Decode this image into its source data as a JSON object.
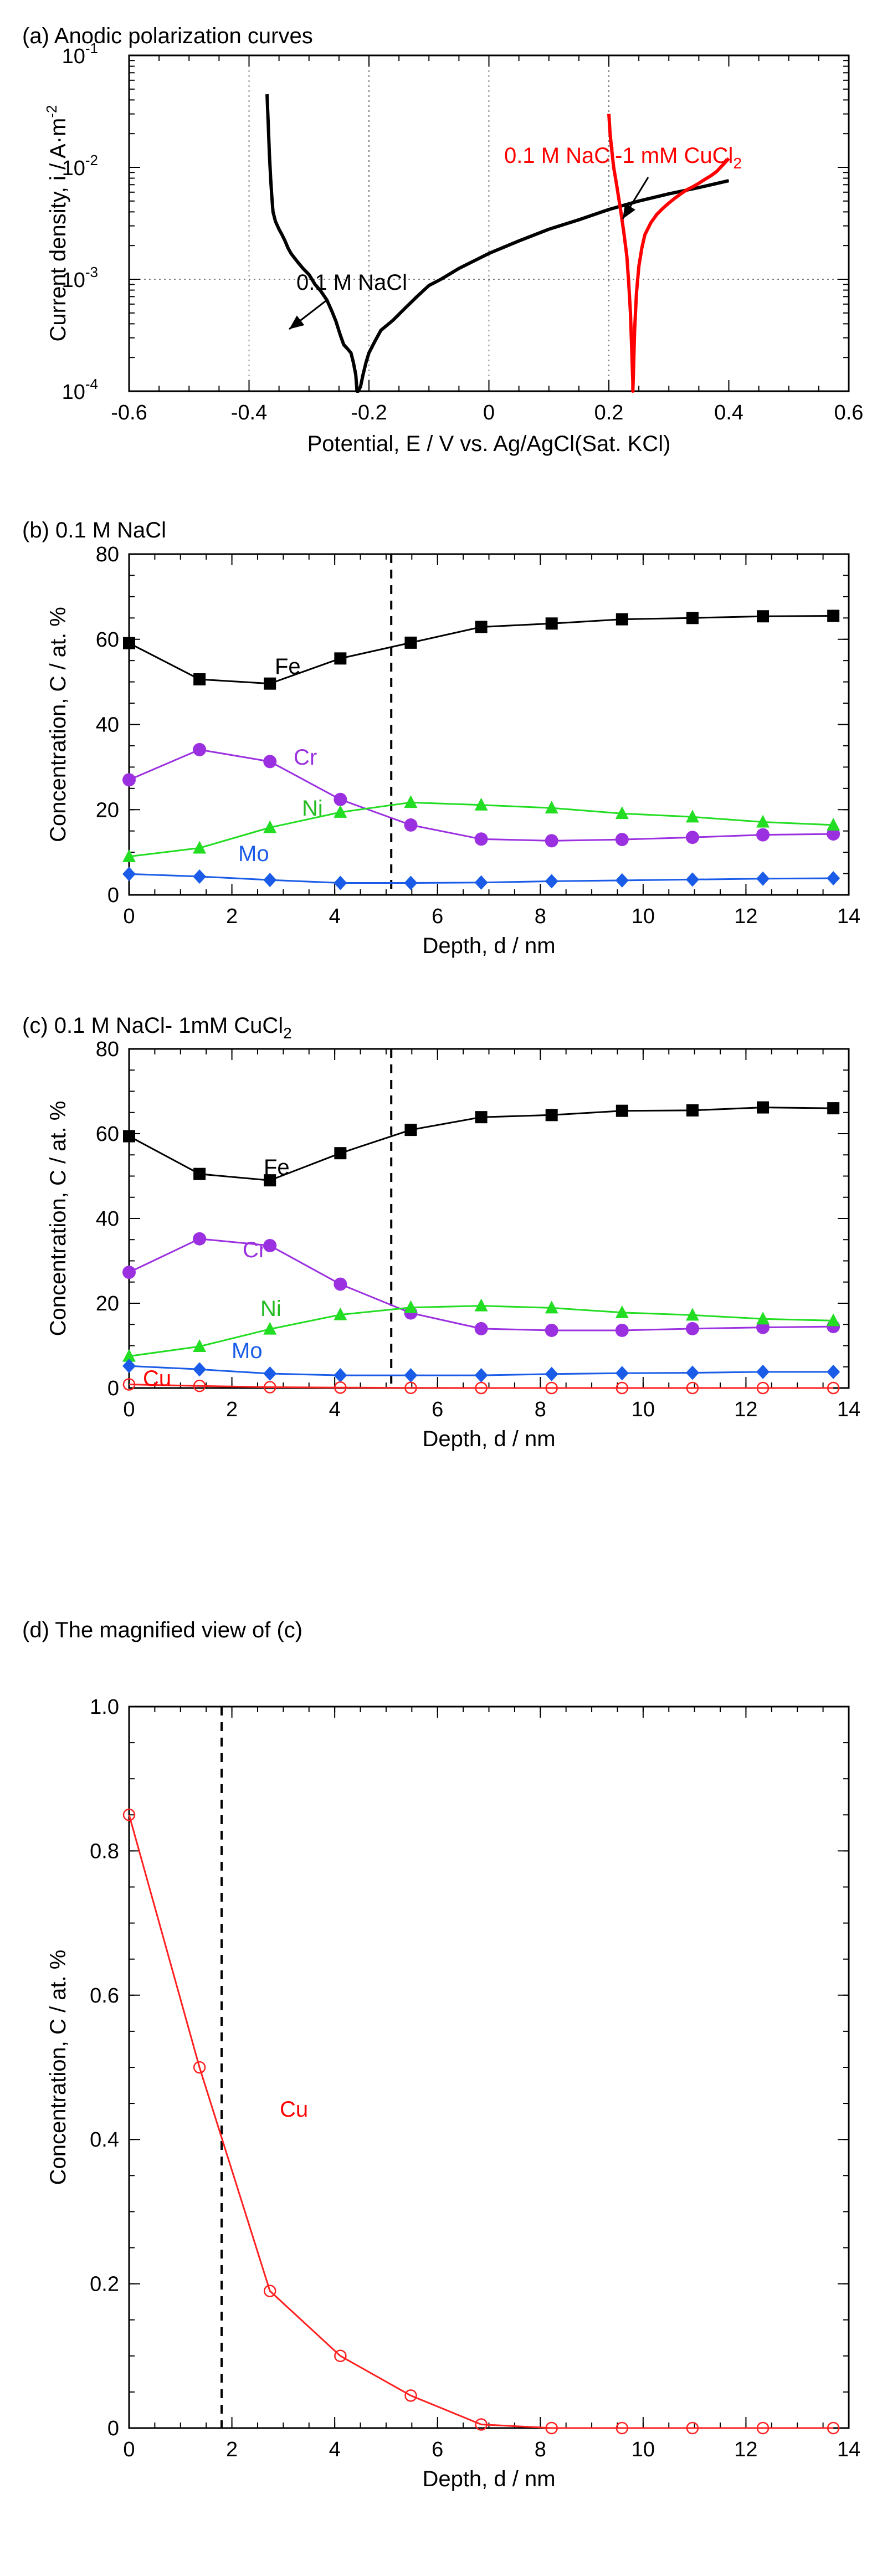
{
  "chart_data": [
    {
      "id": "a",
      "type": "line",
      "title": "(a)  Anodic polarization curves",
      "xlabel": "Potential, E / V vs. Ag/AgCl(Sat. KCl)",
      "ylabel": "Current density, i / A·m-2",
      "xlim": [
        -0.6,
        0.6
      ],
      "ylim": [
        0.0001,
        0.1
      ],
      "yscale": "log",
      "x_ticks": [
        "-0.6",
        "-0.4",
        "-0.2",
        "0",
        "0.2",
        "0.4",
        "0.6"
      ],
      "y_ticks": [
        "10-4",
        "10-3",
        "10-2",
        "10-1"
      ],
      "grid": "dotted at x = -0.4, -0.2, 0, 0.2 and y = 10^-3",
      "series": [
        {
          "name": "0.1 M NaCl",
          "label": "0.1 M NaCl",
          "color": "#000000",
          "x": [
            -0.37,
            -0.368,
            -0.366,
            -0.364,
            -0.362,
            -0.36,
            -0.356,
            -0.35,
            -0.345,
            -0.34,
            -0.335,
            -0.33,
            -0.32,
            -0.31,
            -0.3,
            -0.29,
            -0.28,
            -0.27,
            -0.262,
            -0.255,
            -0.248,
            -0.242,
            -0.236,
            -0.23,
            -0.226,
            -0.222,
            -0.22,
            -0.218,
            -0.214,
            -0.21,
            -0.205,
            -0.2,
            -0.19,
            -0.18,
            -0.16,
            -0.14,
            -0.12,
            -0.1,
            -0.08,
            -0.05,
            0.0,
            0.05,
            0.1,
            0.15,
            0.2,
            0.25,
            0.3,
            0.35,
            0.4
          ],
          "y": [
            0.045,
            0.025,
            0.013,
            0.008,
            0.0055,
            0.004,
            0.0033,
            0.0028,
            0.0025,
            0.0022,
            0.0019,
            0.0017,
            0.00145,
            0.00125,
            0.0011,
            0.0009,
            0.00078,
            0.00065,
            0.00052,
            0.00042,
            0.00032,
            0.00026,
            0.00024,
            0.00022,
            0.00018,
            0.00014,
            0.0001,
            0.0001,
            0.00011,
            0.00014,
            0.00018,
            0.00022,
            0.00028,
            0.00035,
            0.00043,
            0.00055,
            0.0007,
            0.00088,
            0.001,
            0.00125,
            0.0017,
            0.0022,
            0.0028,
            0.0034,
            0.0042,
            0.005,
            0.0058,
            0.0066,
            0.0076
          ]
        },
        {
          "name": "0.1 M NaCl-1 mM CuCl2",
          "label": "0.1 M NaCl-1 mM CuCl",
          "label_sub": "2",
          "color": "#ff0000",
          "x": [
            0.2,
            0.202,
            0.205,
            0.208,
            0.212,
            0.216,
            0.22,
            0.225,
            0.23,
            0.233,
            0.236,
            0.238,
            0.24,
            0.24,
            0.241,
            0.243,
            0.246,
            0.25,
            0.255,
            0.26,
            0.27,
            0.28,
            0.29,
            0.3,
            0.31,
            0.32,
            0.33,
            0.34,
            0.35,
            0.36,
            0.37,
            0.38,
            0.39,
            0.4
          ],
          "y": [
            0.03,
            0.02,
            0.014,
            0.01,
            0.0075,
            0.0055,
            0.004,
            0.0026,
            0.0016,
            0.00095,
            0.0005,
            0.00025,
            0.00012,
            0.0001,
            0.00015,
            0.00035,
            0.00075,
            0.0013,
            0.0019,
            0.0025,
            0.0032,
            0.0038,
            0.0043,
            0.0048,
            0.0053,
            0.0058,
            0.0063,
            0.0067,
            0.0072,
            0.0078,
            0.0084,
            0.0092,
            0.0105,
            0.012
          ]
        }
      ]
    },
    {
      "id": "b",
      "type": "line",
      "title": "(b)  0.1 M NaCl",
      "xlabel": "Depth, d / nm",
      "ylabel": "Concentration, C / at. %",
      "xlim": [
        0,
        14
      ],
      "ylim": [
        0,
        80
      ],
      "x_ticks": [
        "0",
        "2",
        "4",
        "6",
        "8",
        "10",
        "12",
        "14"
      ],
      "y_ticks": [
        "0",
        "20",
        "40",
        "60",
        "80"
      ],
      "ref_line_x": 5.1,
      "x": [
        0,
        1.37,
        2.74,
        4.11,
        5.48,
        6.85,
        8.22,
        9.59,
        10.96,
        12.33,
        13.7
      ],
      "series": [
        {
          "name": "Fe",
          "marker": "square",
          "color": "#000000",
          "label_color": "#000000",
          "values": [
            59.1,
            50.6,
            49.6,
            55.5,
            59.2,
            62.9,
            63.7,
            64.7,
            65.0,
            65.4,
            65.5
          ]
        },
        {
          "name": "Cr",
          "marker": "circle",
          "color": "#9b30e0",
          "label_color": "#9b30e0",
          "values": [
            27.0,
            34.1,
            31.3,
            22.4,
            16.4,
            13.1,
            12.7,
            13.0,
            13.5,
            14.1,
            14.3
          ]
        },
        {
          "name": "Ni",
          "marker": "triangle",
          "color": "#22dd22",
          "label_color": "#22bb22",
          "values": [
            9.0,
            11.0,
            15.8,
            19.4,
            21.7,
            21.1,
            20.4,
            19.1,
            18.3,
            17.1,
            16.4
          ]
        },
        {
          "name": "Mo",
          "marker": "diamond",
          "color": "#1a5ce8",
          "label_color": "#1a5ce8",
          "values": [
            4.9,
            4.3,
            3.5,
            2.8,
            2.8,
            2.9,
            3.2,
            3.4,
            3.6,
            3.8,
            3.9
          ]
        }
      ]
    },
    {
      "id": "c",
      "type": "line",
      "title": "(c) 0.1 M NaCl- 1mM CuCl",
      "title_sub": "2",
      "xlabel": "Depth, d / nm",
      "ylabel": "Concentration, C / at. %",
      "xlim": [
        0,
        14
      ],
      "ylim": [
        0,
        80
      ],
      "x_ticks": [
        "0",
        "2",
        "4",
        "6",
        "8",
        "10",
        "12",
        "14"
      ],
      "y_ticks": [
        "0",
        "20",
        "40",
        "60",
        "80"
      ],
      "ref_line_x": 5.1,
      "x": [
        0,
        1.37,
        2.74,
        4.11,
        5.48,
        6.85,
        8.22,
        9.59,
        10.96,
        12.33,
        13.7
      ],
      "series": [
        {
          "name": "Fe",
          "marker": "square",
          "color": "#000000",
          "label_color": "#000000",
          "values": [
            59.4,
            50.5,
            49.0,
            55.4,
            60.9,
            63.9,
            64.4,
            65.4,
            65.5,
            66.2,
            66.0
          ]
        },
        {
          "name": "Cr",
          "marker": "circle",
          "color": "#9b30e0",
          "label_color": "#9b30e0",
          "values": [
            27.3,
            35.2,
            33.6,
            24.5,
            17.7,
            14.0,
            13.6,
            13.6,
            14.0,
            14.3,
            14.5
          ]
        },
        {
          "name": "Ni",
          "marker": "triangle",
          "color": "#22dd22",
          "label_color": "#22bb22",
          "values": [
            7.5,
            9.8,
            13.9,
            17.3,
            19.0,
            19.4,
            18.9,
            17.8,
            17.2,
            16.3,
            15.9
          ]
        },
        {
          "name": "Mo",
          "marker": "diamond",
          "color": "#1a5ce8",
          "label_color": "#1a5ce8",
          "values": [
            5.2,
            4.4,
            3.4,
            3.0,
            3.0,
            3.0,
            3.3,
            3.5,
            3.6,
            3.8,
            3.8
          ]
        },
        {
          "name": "Cu",
          "marker": "open-circle",
          "color": "#ff2020",
          "label_color": "#ff0000",
          "values": [
            0.85,
            0.5,
            0.19,
            0.1,
            0.04,
            0.0,
            0.0,
            0.0,
            0.0,
            0.0,
            0.0
          ]
        }
      ]
    },
    {
      "id": "d",
      "type": "line",
      "title": "(d) The magnified view of (c)",
      "xlabel": "Depth, d / nm",
      "ylabel": "Concentration, C / at. %",
      "xlim": [
        0,
        14
      ],
      "ylim": [
        0,
        1.0
      ],
      "x_ticks": [
        "0",
        "2",
        "4",
        "6",
        "8",
        "10",
        "12",
        "14"
      ],
      "y_ticks": [
        "0",
        "0.2",
        "0.4",
        "0.6",
        "0.8",
        "1.0"
      ],
      "ref_line_x": 1.8,
      "x": [
        0,
        1.37,
        2.74,
        4.11,
        5.48,
        6.85,
        8.22,
        9.59,
        10.96,
        12.33,
        13.7
      ],
      "series": [
        {
          "name": "Cu",
          "marker": "open-circle",
          "color": "#ff2020",
          "label_color": "#ff0000",
          "values": [
            0.85,
            0.5,
            0.19,
            0.1,
            0.045,
            0.005,
            0.0,
            0.0,
            0.0,
            0.0,
            0.0
          ]
        }
      ]
    }
  ]
}
